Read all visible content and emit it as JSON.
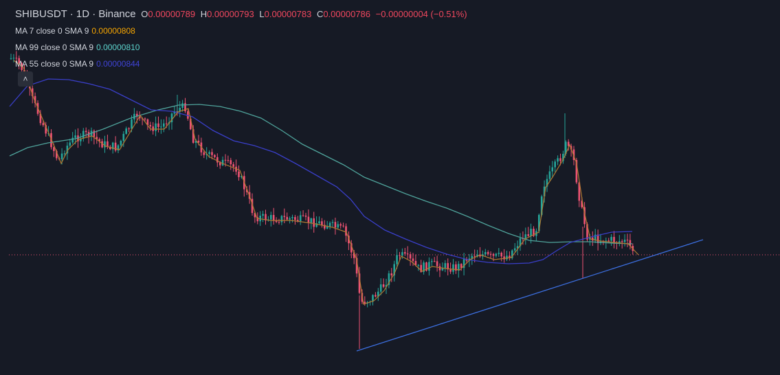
{
  "legend": {
    "symbol": "SHIBUSDT · 1D · Binance",
    "ohlc": {
      "o_label": "O",
      "o": "0.00000789",
      "h_label": "H",
      "h": "0.00000793",
      "l_label": "L",
      "l": "0.00000783",
      "c_label": "C",
      "c": "0.00000786",
      "change": "−0.00000004 (−0.51%)"
    },
    "indicators": [
      {
        "label": "MA 7 close 0 SMA 9",
        "value": "0.00000808",
        "color": "#f7a600"
      },
      {
        "label": "MA 99 close 0 SMA 9",
        "value": "0.00000810",
        "color": "#5dd5ce"
      },
      {
        "label": "MA 55 close 0 SMA 9",
        "value": "0.00000844",
        "color": "#3f43d6"
      }
    ],
    "collapse_icon": "chevron-up-icon"
  },
  "colors": {
    "background": "#161a25",
    "up": "#26a69a",
    "down": "#ef5373",
    "ma7": "#b07a32",
    "ma99": "#4fa39b",
    "ma55": "#3a3fc9",
    "trendline": "#3c6fe0",
    "price_line": "#ef5373"
  }
}
